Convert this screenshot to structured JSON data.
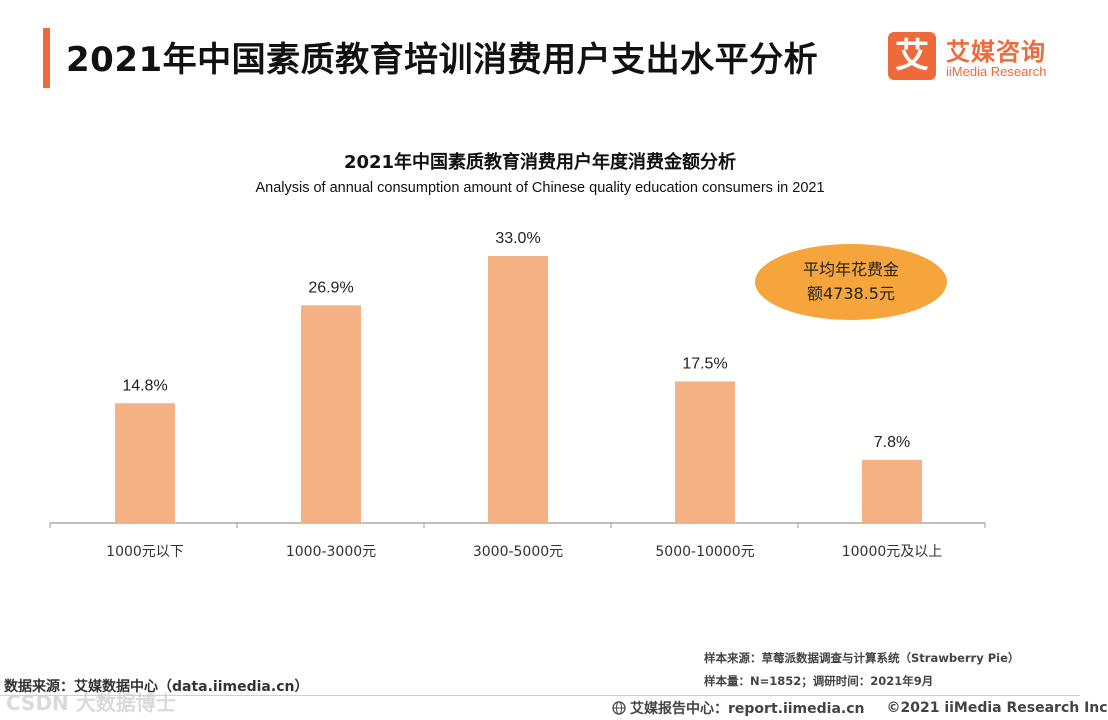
{
  "header": {
    "title": "2021年中国素质教育培训消费用户支出水平分析",
    "logo_mark": "艾",
    "logo_cn": "艾媒咨询",
    "logo_en": "iiMedia Research"
  },
  "chart_data": {
    "type": "bar",
    "title": "2021年中国素质教育消费用户年度消费金额分析",
    "subtitle": "Analysis of annual consumption amount of Chinese quality education consumers in 2021",
    "categories": [
      "1000元以下",
      "1000-3000元",
      "3000-5000元",
      "5000-10000元",
      "10000元及以上"
    ],
    "values": [
      14.8,
      26.9,
      33.0,
      17.5,
      7.8
    ],
    "value_labels": [
      "14.8%",
      "26.9%",
      "33.0%",
      "17.5%",
      "7.8%"
    ],
    "unit": "%",
    "ylim": [
      0,
      35
    ],
    "xlabel": "",
    "ylabel": "",
    "grid": false,
    "bar_color": "#f3b184"
  },
  "annotation": {
    "line1": "平均年花费金",
    "line2": "额4738.5元",
    "color": "#f5a53b"
  },
  "footer": {
    "source_left": "数据来源：艾媒数据中心（data.iimedia.cn）",
    "sample_source": "样本来源：草莓派数据调查与计算系统（Strawberry Pie）",
    "sample_size": "样本量：N=1852；调研时间：2021年9月",
    "report_center": "艾媒报告中心：report.iimedia.cn",
    "copyright": "©2021  iiMedia Research  Inc",
    "watermark": "CSDN 大数据博士"
  }
}
